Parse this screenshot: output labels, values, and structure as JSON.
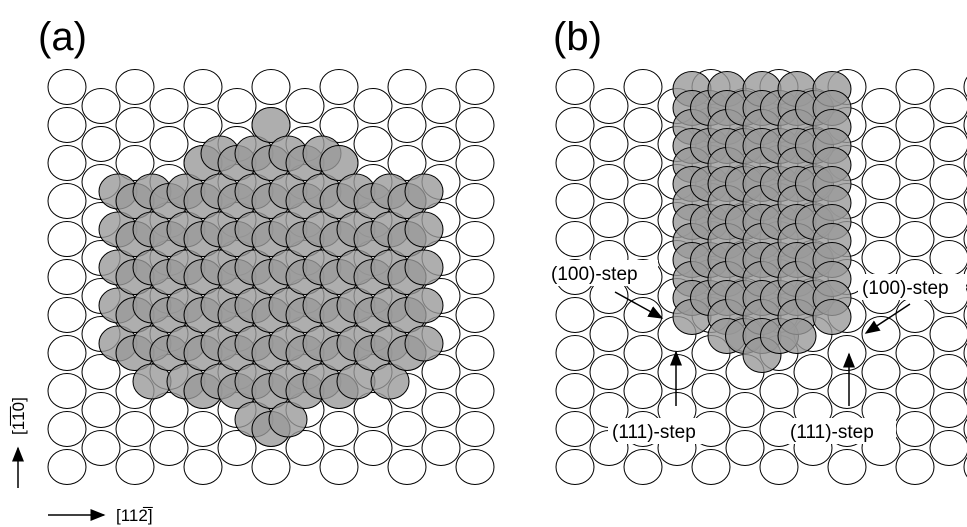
{
  "panels": [
    {
      "label": "(a)"
    },
    {
      "label": "(b)",
      "annotations": [
        "(100)-step",
        "(100)-step",
        "(111)-step",
        "(111)-step"
      ]
    }
  ],
  "axes": {
    "vertical": "[1̅1̅0]",
    "horizontal": "[112̅]"
  }
}
